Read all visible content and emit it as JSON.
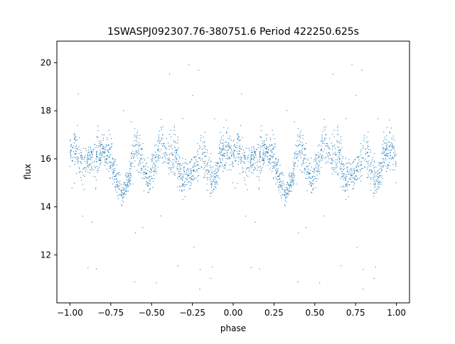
{
  "chart_data": {
    "type": "scatter",
    "title": "1SWASPJ092307.76-380751.6 Period 422250.625s",
    "xlabel": "phase",
    "ylabel": "flux",
    "xlim": [
      -1.08,
      1.08
    ],
    "ylim": [
      10.0,
      20.9
    ],
    "xticks": [
      -1.0,
      -0.75,
      -0.5,
      -0.25,
      0.0,
      0.25,
      0.5,
      0.75,
      1.0
    ],
    "xtick_labels": [
      "−1.00",
      "−0.75",
      "−0.50",
      "−0.25",
      "0.00",
      "0.25",
      "0.50",
      "0.75",
      "1.00"
    ],
    "yticks": [
      12,
      14,
      16,
      18,
      20
    ],
    "ytick_labels": [
      "12",
      "14",
      "16",
      "18",
      "20"
    ],
    "grid": false,
    "marker_color": "#1f77b4",
    "series": [
      {
        "phase_range": [
          -1.0,
          1.0
        ],
        "symmetric_repeat": true,
        "envelope_phase": [
          0.0,
          0.04,
          0.08,
          0.12,
          0.16,
          0.2,
          0.24,
          0.28,
          0.32,
          0.36,
          0.4,
          0.44,
          0.48,
          0.52,
          0.56,
          0.6,
          0.64,
          0.68,
          0.72,
          0.76,
          0.8,
          0.84,
          0.88,
          0.92,
          0.96,
          1.0
        ],
        "envelope_low": [
          15.6,
          15.0,
          14.4,
          15.2,
          14.3,
          15.6,
          15.0,
          14.2,
          13.8,
          14.4,
          15.5,
          14.6,
          13.9,
          14.8,
          15.6,
          15.2,
          14.5,
          13.9,
          14.2,
          14.7,
          15.0,
          14.2,
          14.0,
          14.9,
          14.7,
          14.8
        ],
        "envelope_high": [
          17.2,
          17.6,
          17.1,
          16.8,
          17.9,
          17.2,
          17.5,
          16.3,
          15.1,
          15.9,
          17.9,
          17.2,
          16.2,
          16.8,
          17.8,
          17.0,
          18.0,
          16.6,
          16.1,
          16.3,
          17.6,
          17.3,
          15.9,
          17.4,
          18.1,
          17.0
        ],
        "outlier_range": [
          10.4,
          20.4
        ]
      }
    ]
  }
}
